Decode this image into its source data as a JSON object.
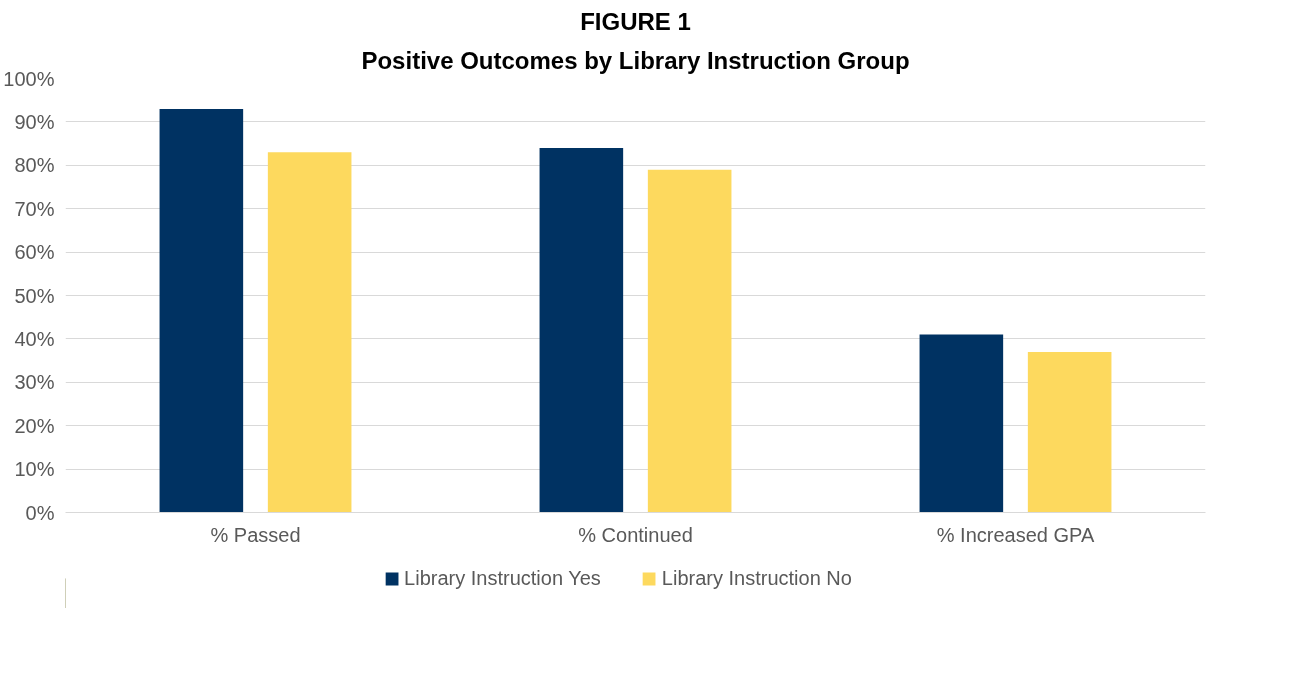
{
  "chart_data": {
    "type": "bar",
    "title": "FIGURE 1",
    "subtitle": "Positive Outcomes by Library Instruction Group",
    "categories": [
      "% Passed",
      "% Continued",
      "% Increased GPA"
    ],
    "series": [
      {
        "name": "Library Instruction Yes",
        "color": "#003262",
        "values": [
          93,
          84,
          41
        ]
      },
      {
        "name": "Library Instruction No",
        "color": "#fdd95e",
        "values": [
          83,
          79,
          37
        ]
      }
    ],
    "ylim": [
      0,
      100
    ],
    "yticks": [
      {
        "value": 0,
        "label": "0%"
      },
      {
        "value": 10,
        "label": "10%"
      },
      {
        "value": 20,
        "label": "20%"
      },
      {
        "value": 30,
        "label": "30%"
      },
      {
        "value": 40,
        "label": "40%"
      },
      {
        "value": 50,
        "label": "50%"
      },
      {
        "value": 60,
        "label": "60%"
      },
      {
        "value": 70,
        "label": "70%"
      },
      {
        "value": 80,
        "label": "80%"
      },
      {
        "value": 90,
        "label": "90%"
      },
      {
        "value": 100,
        "label": "100%"
      }
    ],
    "grid": "y",
    "legend": "bottom"
  }
}
